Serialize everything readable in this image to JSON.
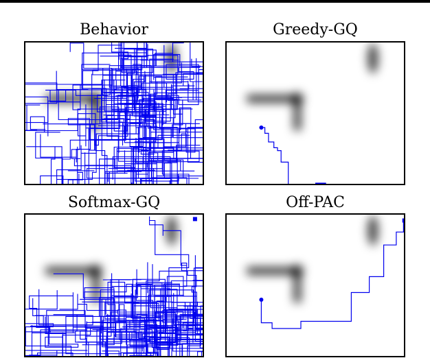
{
  "figure": {
    "colors": {
      "trajectory": "#0000ee",
      "frame": "#000000",
      "background": "#ffffff",
      "field": "#000000"
    }
  },
  "chart_data": [
    {
      "type": "heatmap",
      "title": "Behavior",
      "xlim": [
        0,
        1
      ],
      "ylim": [
        0,
        1
      ],
      "field": {
        "horizontal_bar": {
          "x_from": 0.12,
          "x_to": 0.4,
          "y": 0.4
        },
        "vertical_bar": {
          "x": 0.4,
          "y_from": 0.4,
          "y_to": 0.62
        },
        "top_right_blob": {
          "x": 0.82,
          "y": 0.12
        }
      },
      "trajectory": {
        "style": "dense random walk",
        "coverage": "entire area",
        "start": null,
        "end": null
      }
    },
    {
      "type": "heatmap",
      "title": "Greedy-GQ",
      "xlim": [
        0,
        1
      ],
      "ylim": [
        0,
        1
      ],
      "field": {
        "horizontal_bar": {
          "x_from": 0.12,
          "x_to": 0.4,
          "y": 0.4
        },
        "vertical_bar": {
          "x": 0.4,
          "y_from": 0.4,
          "y_to": 0.62
        },
        "top_right_blob": {
          "x": 0.82,
          "y": 0.12
        }
      },
      "trajectory": {
        "start": [
          0.2,
          0.6
        ],
        "path": [
          [
            0.2,
            0.6
          ],
          [
            0.22,
            0.6
          ],
          [
            0.22,
            0.64
          ],
          [
            0.24,
            0.64
          ],
          [
            0.24,
            0.7
          ],
          [
            0.27,
            0.7
          ],
          [
            0.27,
            0.74
          ],
          [
            0.29,
            0.74
          ],
          [
            0.29,
            0.76
          ],
          [
            0.31,
            0.76
          ],
          [
            0.31,
            0.84
          ],
          [
            0.35,
            0.84
          ],
          [
            0.35,
            1.0
          ]
        ],
        "end_segment": [
          [
            0.5,
            0.99
          ],
          [
            0.56,
            0.99
          ]
        ]
      }
    },
    {
      "type": "heatmap",
      "title": "Softmax-GQ",
      "xlim": [
        0,
        1
      ],
      "ylim": [
        0,
        1
      ],
      "field": {
        "horizontal_bar": {
          "x_from": 0.12,
          "x_to": 0.4,
          "y": 0.4
        },
        "vertical_bar": {
          "x": 0.4,
          "y_from": 0.4,
          "y_to": 0.62
        },
        "top_right_blob": {
          "x": 0.82,
          "y": 0.12
        }
      },
      "trajectory": {
        "style": "random walk, denser at bottom",
        "coverage": "mostly lower half",
        "end": [
          0.95,
          0.04
        ]
      }
    },
    {
      "type": "heatmap",
      "title": "Off-PAC",
      "xlim": [
        0,
        1
      ],
      "ylim": [
        0,
        1
      ],
      "field": {
        "horizontal_bar": {
          "x_from": 0.12,
          "x_to": 0.4,
          "y": 0.4
        },
        "vertical_bar": {
          "x": 0.4,
          "y_from": 0.4,
          "y_to": 0.62
        },
        "top_right_blob": {
          "x": 0.82,
          "y": 0.12
        }
      },
      "trajectory": {
        "start": [
          0.2,
          0.6
        ],
        "path": [
          [
            0.2,
            0.6
          ],
          [
            0.2,
            0.76
          ],
          [
            0.26,
            0.76
          ],
          [
            0.26,
            0.8
          ],
          [
            0.42,
            0.8
          ],
          [
            0.42,
            0.75
          ],
          [
            0.7,
            0.75
          ],
          [
            0.7,
            0.55
          ],
          [
            0.8,
            0.55
          ],
          [
            0.8,
            0.44
          ],
          [
            0.88,
            0.44
          ],
          [
            0.88,
            0.22
          ],
          [
            0.95,
            0.22
          ],
          [
            0.95,
            0.13
          ],
          [
            0.99,
            0.13
          ],
          [
            0.99,
            0.05
          ]
        ],
        "end": [
          0.995,
          0.05
        ]
      }
    }
  ]
}
